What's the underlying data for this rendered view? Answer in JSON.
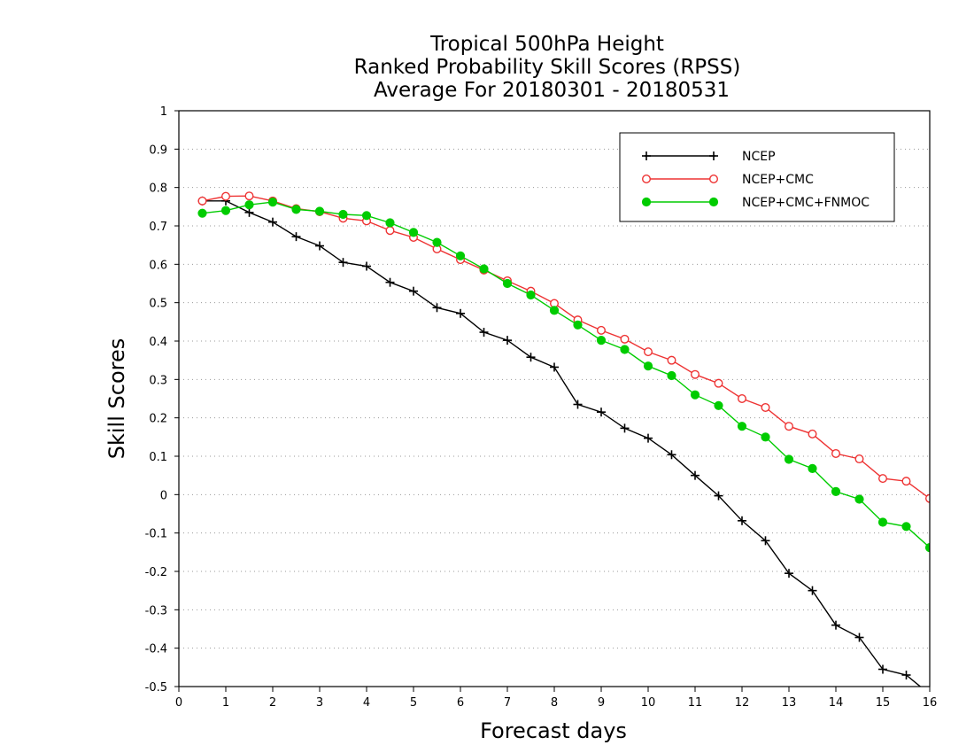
{
  "chart_data": {
    "type": "line",
    "title": [
      "Tropical 500hPa Height",
      "Ranked Probability Skill Scores (RPSS)",
      "Average For 20180301 - 20180531"
    ],
    "xlabel": "Forecast days",
    "ylabel": "Skill Scores",
    "xlim": [
      0,
      16
    ],
    "ylim": [
      -0.5,
      1
    ],
    "x_ticks": [
      0,
      1,
      2,
      3,
      4,
      5,
      6,
      7,
      8,
      9,
      10,
      11,
      12,
      13,
      14,
      15,
      16
    ],
    "y_ticks": [
      -0.5,
      -0.4,
      -0.3,
      -0.2,
      -0.1,
      0,
      0.1,
      0.2,
      0.3,
      0.4,
      0.5,
      0.6,
      0.7,
      0.8,
      0.9,
      1
    ],
    "y_tick_labels": [
      "-0.5",
      "-0.4",
      "-0.3",
      "-0.2",
      "-0.1",
      "0",
      "0.1",
      "0.2",
      "0.3",
      "0.4",
      "0.5",
      "0.6",
      "0.7",
      "0.8",
      "0.9",
      "1"
    ],
    "grid": true,
    "legend_position": "top-right",
    "x": [
      0.5,
      1,
      1.5,
      2,
      2.5,
      3,
      3.5,
      4,
      4.5,
      5,
      5.5,
      6,
      6.5,
      7,
      7.5,
      8,
      8.5,
      9,
      9.5,
      10,
      10.5,
      11,
      11.5,
      12,
      12.5,
      13,
      13.5,
      14,
      14.5,
      15,
      15.5,
      16
    ],
    "series": [
      {
        "name": "NCEP",
        "color": "#000000",
        "marker": "plus",
        "values": [
          0.765,
          0.765,
          0.735,
          0.71,
          0.672,
          0.648,
          0.605,
          0.595,
          0.553,
          0.53,
          0.487,
          0.472,
          0.423,
          0.402,
          0.358,
          0.332,
          0.235,
          0.215,
          0.173,
          0.147,
          0.104,
          0.05,
          -0.003,
          -0.068,
          -0.12,
          -0.205,
          -0.25,
          -0.34,
          -0.372,
          -0.455,
          -0.47,
          -0.52
        ]
      },
      {
        "name": "NCEP+CMC",
        "color": "#ee3333",
        "marker": "open-circle",
        "values": [
          0.765,
          0.777,
          0.778,
          0.765,
          0.745,
          0.737,
          0.72,
          0.713,
          0.688,
          0.67,
          0.64,
          0.612,
          0.585,
          0.557,
          0.53,
          0.498,
          0.455,
          0.428,
          0.405,
          0.372,
          0.35,
          0.313,
          0.29,
          0.25,
          0.227,
          0.178,
          0.158,
          0.107,
          0.093,
          0.042,
          0.035,
          -0.01
        ]
      },
      {
        "name": "NCEP+CMC+FNMOC",
        "color": "#00cc00",
        "marker": "filled-circle",
        "values": [
          0.733,
          0.74,
          0.755,
          0.762,
          0.743,
          0.738,
          0.73,
          0.727,
          0.708,
          0.683,
          0.657,
          0.622,
          0.588,
          0.55,
          0.52,
          0.48,
          0.442,
          0.402,
          0.378,
          0.335,
          0.31,
          0.26,
          0.232,
          0.178,
          0.15,
          0.092,
          0.068,
          0.008,
          -0.012,
          -0.072,
          -0.083,
          -0.138
        ]
      }
    ]
  }
}
